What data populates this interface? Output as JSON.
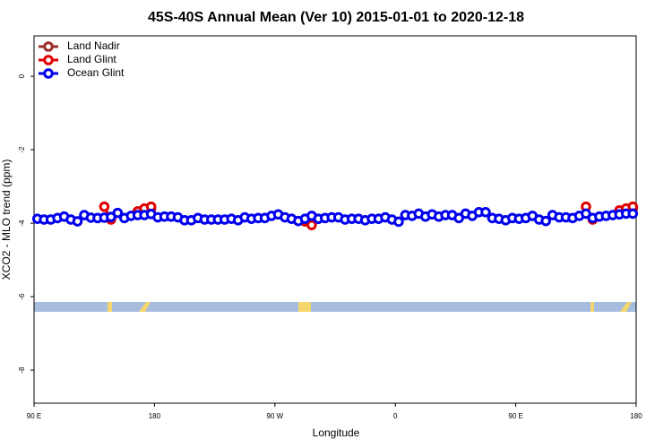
{
  "chart_data": {
    "type": "line",
    "title": "45S-40S Annual Mean (Ver 10)   2015-01-01 to 2020-12-18",
    "x_label": "Longitude",
    "y_label": "XCO2 - MLO trend (ppm)",
    "xlim": [
      90,
      540
    ],
    "xticks": [
      {
        "value": 90,
        "label": "90 E"
      },
      180,
      {
        "value": 270,
        "label": "90 W"
      },
      {
        "value": 360,
        "label": "0"
      },
      {
        "value": 450,
        "label": "90 E"
      },
      {
        "value": 540,
        "label": "180"
      }
    ],
    "ylim": [
      -8.9,
      1.1
    ],
    "yticks": [
      0,
      -2,
      -4,
      -6,
      -8
    ],
    "legend": "top-left",
    "series": [
      {
        "name": "Land Nadir",
        "color": "#9b2d2d",
        "x": [
          167.5,
          172.5,
          177.5,
          287.5,
          292.5,
          297.5,
          527.5,
          532.5,
          537.5
        ],
        "values": [
          -3.68,
          -3.62,
          -3.6,
          null,
          -3.95,
          -4.0,
          null,
          -3.65,
          -3.6
        ]
      },
      {
        "name": "Land Glint",
        "color": "#e00000",
        "x": [
          142.5,
          147.5,
          152.5,
          167.5,
          172.5,
          177.5,
          287.5,
          292.5,
          297.5,
          302.5,
          502.5,
          507.5,
          512.5,
          527.5,
          532.5,
          537.5
        ],
        "values": [
          -3.55,
          -3.9,
          null,
          -3.68,
          -3.6,
          -3.55,
          null,
          -3.95,
          -4.05,
          null,
          -3.55,
          -3.9,
          null,
          -3.65,
          -3.6,
          -3.55
        ]
      },
      {
        "name": "Ocean Glint",
        "color": "#0000ee",
        "x": [
          92.5,
          97.5,
          102.5,
          107.5,
          112.5,
          117.5,
          122.5,
          127.5,
          132.5,
          137.5,
          142.5,
          147.5,
          152.5,
          157.5,
          162.5,
          167.5,
          172.5,
          177.5,
          182.5,
          187.5,
          192.5,
          197.5,
          202.5,
          207.5,
          212.5,
          217.5,
          222.5,
          227.5,
          232.5,
          237.5,
          242.5,
          247.5,
          252.5,
          257.5,
          262.5,
          267.5,
          272.5,
          277.5,
          282.5,
          287.5,
          292.5,
          297.5,
          302.5,
          307.5,
          312.5,
          317.5,
          322.5,
          327.5,
          332.5,
          337.5,
          342.5,
          347.5,
          352.5,
          357.5,
          362.5,
          367.5,
          372.5,
          377.5,
          382.5,
          387.5,
          392.5,
          397.5,
          402.5,
          407.5,
          412.5,
          417.5,
          422.5,
          427.5,
          432.5,
          437.5,
          442.5,
          447.5,
          452.5,
          457.5,
          462.5,
          467.5,
          472.5,
          477.5,
          482.5,
          487.5,
          492.5,
          497.5,
          502.5,
          507.5,
          512.5,
          517.5,
          522.5,
          527.5,
          532.5,
          537.5
        ],
        "values": [
          -3.88,
          -3.9,
          -3.9,
          -3.86,
          -3.82,
          -3.9,
          -3.95,
          -3.78,
          -3.85,
          -3.86,
          -3.85,
          -3.83,
          -3.72,
          -3.86,
          -3.8,
          -3.78,
          -3.78,
          -3.75,
          -3.84,
          -3.82,
          -3.82,
          -3.84,
          -3.92,
          -3.92,
          -3.86,
          -3.9,
          -3.9,
          -3.9,
          -3.9,
          -3.88,
          -3.92,
          -3.84,
          -3.88,
          -3.86,
          -3.86,
          -3.8,
          -3.76,
          -3.84,
          -3.88,
          -3.94,
          -3.88,
          -3.8,
          -3.88,
          -3.86,
          -3.84,
          -3.84,
          -3.9,
          -3.88,
          -3.88,
          -3.92,
          -3.88,
          -3.88,
          -3.84,
          -3.9,
          -3.96,
          -3.78,
          -3.8,
          -3.74,
          -3.82,
          -3.76,
          -3.82,
          -3.78,
          -3.78,
          -3.86,
          -3.74,
          -3.8,
          -3.7,
          -3.7,
          -3.86,
          -3.88,
          -3.92,
          -3.86,
          -3.88,
          -3.86,
          -3.8,
          -3.9,
          -3.94,
          -3.78,
          -3.84,
          -3.84,
          -3.86,
          -3.8,
          -3.74,
          -3.86,
          -3.82,
          -3.8,
          -3.78,
          -3.76,
          -3.74,
          -3.74
        ]
      }
    ]
  }
}
